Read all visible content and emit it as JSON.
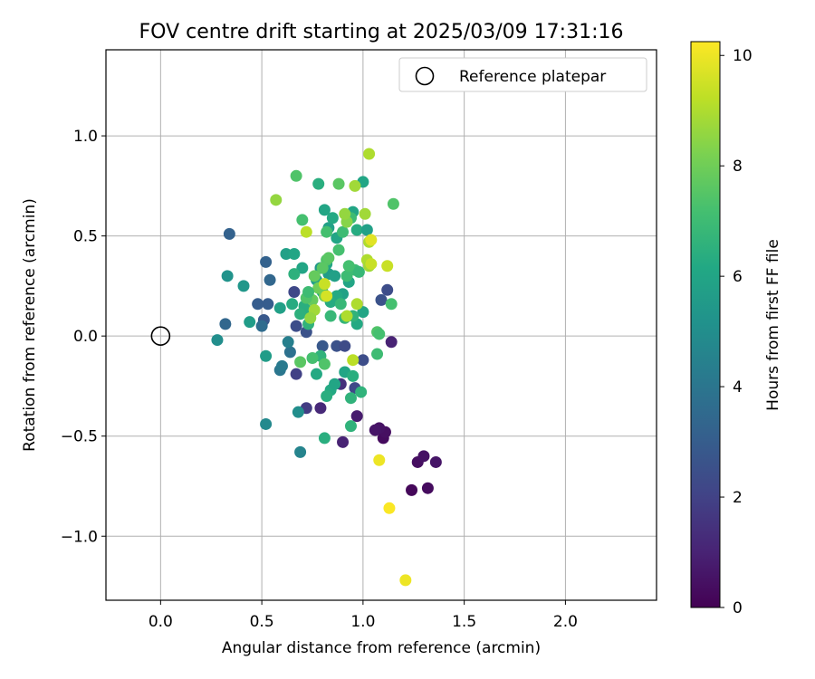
{
  "chart_data": {
    "type": "scatter",
    "title": "FOV centre drift starting at 2025/03/09 17:31:16",
    "xlabel": "Angular distance from reference (arcmin)",
    "ylabel": "Rotation from reference (arcmin)",
    "xlim": [
      -0.27,
      2.45
    ],
    "ylim": [
      -1.32,
      1.43
    ],
    "xticks": [
      0.0,
      0.5,
      1.0,
      1.5,
      2.0
    ],
    "xtick_labels": [
      "0.0",
      "0.5",
      "1.0",
      "1.5",
      "2.0"
    ],
    "yticks": [
      -1.0,
      -0.5,
      0.0,
      0.5,
      1.0
    ],
    "ytick_labels": [
      "−1.0",
      "−0.5",
      "0.0",
      "0.5",
      "1.0"
    ],
    "grid": true,
    "legend": {
      "placement": "top-right",
      "entries": [
        {
          "label": "Reference platepar",
          "marker": "open-circle"
        }
      ]
    },
    "reference_point": {
      "x": 0.0,
      "y": 0.0,
      "label": "Reference platepar"
    },
    "colorbar": {
      "label": "Hours from first FF file",
      "range": [
        0,
        10.25
      ],
      "ticks": [
        0,
        2,
        4,
        6,
        8,
        10
      ],
      "tick_labels": [
        "0",
        "2",
        "4",
        "6",
        "8",
        "10"
      ],
      "colormap": "viridis"
    },
    "points": [
      [
        1.24,
        -0.77,
        0.2
      ],
      [
        1.32,
        -0.76,
        0.3
      ],
      [
        1.27,
        -0.63,
        0.4
      ],
      [
        1.3,
        -0.6,
        0.5
      ],
      [
        1.36,
        -0.63,
        0.6
      ],
      [
        1.1,
        -0.51,
        0.3
      ],
      [
        1.11,
        -0.48,
        0.4
      ],
      [
        1.08,
        -0.46,
        0.5
      ],
      [
        1.06,
        -0.47,
        0.6
      ],
      [
        0.97,
        -0.4,
        0.8
      ],
      [
        0.9,
        -0.53,
        1.0
      ],
      [
        0.79,
        -0.36,
        1.2
      ],
      [
        0.89,
        -0.24,
        1.4
      ],
      [
        1.14,
        -0.03,
        1.0
      ],
      [
        0.72,
        -0.36,
        1.8
      ],
      [
        0.67,
        -0.19,
        2.0
      ],
      [
        0.96,
        -0.26,
        2.2
      ],
      [
        1.0,
        -0.12,
        2.4
      ],
      [
        0.87,
        -0.05,
        2.6
      ],
      [
        0.8,
        -0.05,
        2.8
      ],
      [
        0.91,
        -0.05,
        2.3
      ],
      [
        1.12,
        0.23,
        2.4
      ],
      [
        1.09,
        0.18,
        2.6
      ],
      [
        0.51,
        0.08,
        2.8
      ],
      [
        0.53,
        0.16,
        3.0
      ],
      [
        0.34,
        0.51,
        3.2
      ],
      [
        0.32,
        0.06,
        3.4
      ],
      [
        0.48,
        0.16,
        3.0
      ],
      [
        0.52,
        0.37,
        3.2
      ],
      [
        0.54,
        0.28,
        3.4
      ],
      [
        0.66,
        0.22,
        2.2
      ],
      [
        0.67,
        0.05,
        2.4
      ],
      [
        0.72,
        0.02,
        2.6
      ],
      [
        0.5,
        0.05,
        3.6
      ],
      [
        0.64,
        -0.08,
        3.8
      ],
      [
        0.59,
        -0.17,
        4.0
      ],
      [
        0.6,
        -0.15,
        4.2
      ],
      [
        0.63,
        -0.03,
        4.4
      ],
      [
        0.69,
        -0.58,
        4.6
      ],
      [
        0.52,
        -0.44,
        4.8
      ],
      [
        0.68,
        -0.38,
        5.0
      ],
      [
        0.28,
        -0.02,
        5.0
      ],
      [
        0.33,
        0.3,
        5.2
      ],
      [
        0.41,
        0.25,
        5.4
      ],
      [
        0.44,
        0.07,
        5.6
      ],
      [
        0.52,
        -0.1,
        5.6
      ],
      [
        0.59,
        0.14,
        5.8
      ],
      [
        0.62,
        0.41,
        5.8
      ],
      [
        0.66,
        0.41,
        6.0
      ],
      [
        0.7,
        0.34,
        6.0
      ],
      [
        0.79,
        0.34,
        5.4
      ],
      [
        0.83,
        0.31,
        5.6
      ],
      [
        0.86,
        0.3,
        5.8
      ],
      [
        0.9,
        0.21,
        5.9
      ],
      [
        0.93,
        0.27,
        6.0
      ],
      [
        0.77,
        0.28,
        5.8
      ],
      [
        0.82,
        0.36,
        6.0
      ],
      [
        0.8,
        0.22,
        6.1
      ],
      [
        0.87,
        0.2,
        6.2
      ],
      [
        0.84,
        0.17,
        6.3
      ],
      [
        0.71,
        0.15,
        6.4
      ],
      [
        0.74,
        0.11,
        6.4
      ],
      [
        0.69,
        0.11,
        6.5
      ],
      [
        0.65,
        0.16,
        6.3
      ],
      [
        0.66,
        0.31,
        6.5
      ],
      [
        0.73,
        0.06,
        6.6
      ],
      [
        0.77,
        -0.19,
        6.2
      ],
      [
        0.79,
        -0.1,
        6.6
      ],
      [
        0.84,
        -0.27,
        6.2
      ],
      [
        0.82,
        -0.3,
        6.4
      ],
      [
        0.86,
        -0.24,
        6.0
      ],
      [
        0.91,
        -0.18,
        6.0
      ],
      [
        0.94,
        -0.31,
        6.6
      ],
      [
        0.94,
        -0.45,
        6.6
      ],
      [
        0.99,
        -0.28,
        6.6
      ],
      [
        0.87,
        0.49,
        6.0
      ],
      [
        0.83,
        0.54,
        5.8
      ],
      [
        0.81,
        0.63,
        6.0
      ],
      [
        0.78,
        0.76,
        6.4
      ],
      [
        0.85,
        0.59,
        6.2
      ],
      [
        0.95,
        0.62,
        6.0
      ],
      [
        0.97,
        0.53,
        6.3
      ],
      [
        1.0,
        0.77,
        6.0
      ],
      [
        1.02,
        0.53,
        5.8
      ],
      [
        1.0,
        0.12,
        6.0
      ],
      [
        0.97,
        0.06,
        6.2
      ],
      [
        0.95,
        0.1,
        6.6
      ],
      [
        0.91,
        0.09,
        6.7
      ],
      [
        0.84,
        0.1,
        6.8
      ],
      [
        0.89,
        0.16,
        6.8
      ],
      [
        0.92,
        0.3,
        7.0
      ],
      [
        0.96,
        0.33,
        7.0
      ],
      [
        0.98,
        0.32,
        6.8
      ],
      [
        0.93,
        0.35,
        7.2
      ],
      [
        0.88,
        0.43,
        7.2
      ],
      [
        0.9,
        0.52,
        7.0
      ],
      [
        0.94,
        0.59,
        7.0
      ],
      [
        0.82,
        0.52,
        7.2
      ],
      [
        0.7,
        0.58,
        7.2
      ],
      [
        0.67,
        0.8,
        7.4
      ],
      [
        0.88,
        0.76,
        7.6
      ],
      [
        0.82,
        0.38,
        7.4
      ],
      [
        0.83,
        0.39,
        7.6
      ],
      [
        0.8,
        0.34,
        7.6
      ],
      [
        0.76,
        0.3,
        7.8
      ],
      [
        0.78,
        0.24,
        8.0
      ],
      [
        0.81,
        0.2,
        8.0
      ],
      [
        0.75,
        0.18,
        7.8
      ],
      [
        0.72,
        0.19,
        7.4
      ],
      [
        0.73,
        0.22,
        7.0
      ],
      [
        0.75,
        -0.11,
        7.2
      ],
      [
        0.81,
        -0.14,
        7.4
      ],
      [
        0.69,
        -0.13,
        7.6
      ],
      [
        1.07,
        0.02,
        7.4
      ],
      [
        1.08,
        0.01,
        7.2
      ],
      [
        1.07,
        -0.09,
        7.0
      ],
      [
        1.15,
        0.66,
        7.4
      ],
      [
        1.14,
        0.16,
        7.2
      ],
      [
        0.81,
        -0.51,
        6.4
      ],
      [
        0.95,
        -0.2,
        6.4
      ],
      [
        0.92,
        0.57,
        8.4
      ],
      [
        0.91,
        0.61,
        8.6
      ],
      [
        0.96,
        0.75,
        8.8
      ],
      [
        1.01,
        0.61,
        8.8
      ],
      [
        1.03,
        0.47,
        9.0
      ],
      [
        1.02,
        0.38,
        9.0
      ],
      [
        1.03,
        0.35,
        8.8
      ],
      [
        1.04,
        0.36,
        9.4
      ],
      [
        0.97,
        0.16,
        9.0
      ],
      [
        0.92,
        0.1,
        9.0
      ],
      [
        0.95,
        -0.12,
        9.2
      ],
      [
        1.12,
        0.35,
        9.4
      ],
      [
        1.03,
        0.91,
        9.0
      ],
      [
        0.57,
        0.68,
        8.6
      ],
      [
        0.72,
        0.52,
        9.2
      ],
      [
        0.82,
        0.2,
        9.6
      ],
      [
        0.81,
        0.26,
        9.4
      ],
      [
        0.76,
        0.13,
        8.8
      ],
      [
        0.74,
        0.09,
        8.6
      ],
      [
        1.04,
        0.48,
        9.8
      ],
      [
        1.08,
        -0.62,
        10.0
      ],
      [
        1.13,
        -0.86,
        10.2
      ],
      [
        1.21,
        -1.22,
        10.0
      ]
    ]
  }
}
